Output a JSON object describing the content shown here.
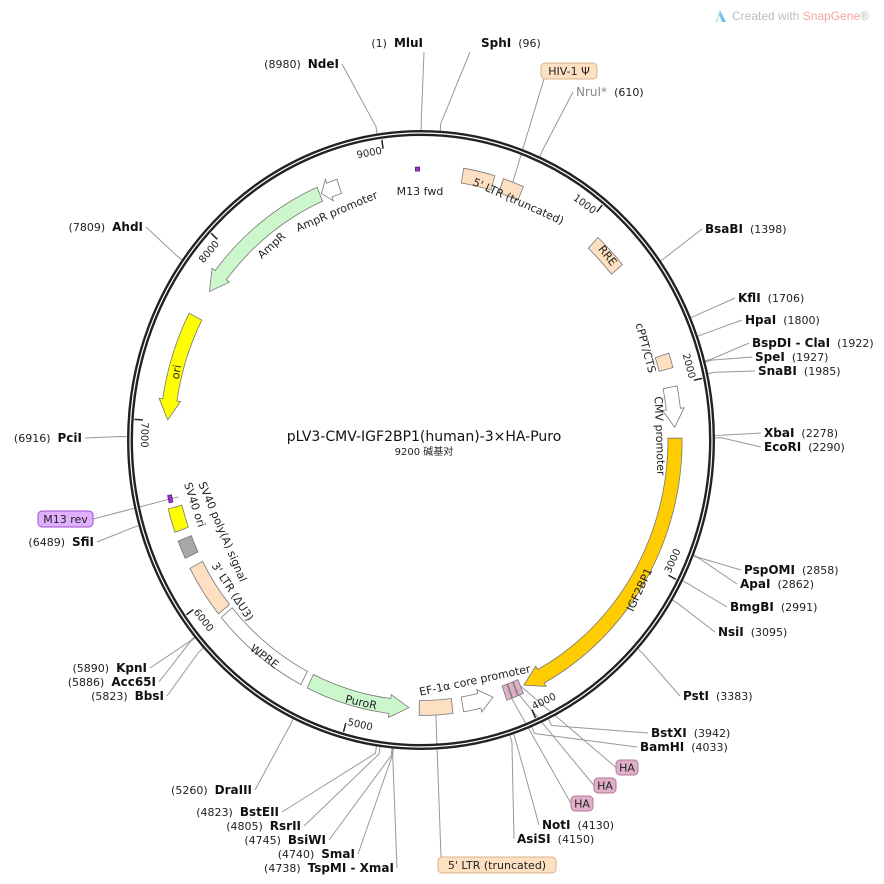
{
  "watermark": {
    "prefix": "Created with ",
    "brand": "SnapGene",
    "suffix": "®"
  },
  "plasmid": {
    "name": "pLV3-CMV-IGF2BP1(human)-3×HA-Puro",
    "length_label": "9200 碱基对",
    "length_bp": 9200
  },
  "ticks": [
    "1000",
    "2000",
    "3000",
    "4000",
    "5000",
    "6000",
    "7000",
    "8000",
    "9000"
  ],
  "colors": {
    "ring": "#222222",
    "peach": "#fde0c2",
    "orange": "#ffcc00",
    "yellow": "#ffff00",
    "green": "#ccf7cc",
    "gray": "#a8a8a8",
    "purple": "#9933cc",
    "pink": "#dfb0c8",
    "callout_purple": "#e0b0ff"
  },
  "features": [
    {
      "label": "M13 fwd",
      "start": 9168,
      "end": 9192,
      "direction": 1,
      "color": "#9933cc",
      "kind": "primer",
      "label_style": "inline"
    },
    {
      "label": "5' LTR (truncated)",
      "start": 240,
      "end": 420,
      "direction": 0,
      "color": "#fde0c2",
      "label_style": "inline"
    },
    {
      "label": "HIV-1 Ψ",
      "start": 470,
      "end": 590,
      "direction": 0,
      "color": "#fde0c2",
      "label_style": "callout"
    },
    {
      "label": "RRE",
      "start": 1090,
      "end": 1290,
      "direction": 0,
      "color": "#fde0c2",
      "label_style": "inline"
    },
    {
      "label": "cPPT/CTS",
      "start": 1830,
      "end": 1910,
      "direction": 0,
      "color": "#fde0c2",
      "label_style": "inline"
    },
    {
      "label": "CMV promoter",
      "start": 2010,
      "end": 2230,
      "direction": 1,
      "color": "#ffffff",
      "label_style": "inline"
    },
    {
      "label": "IGF2BP1",
      "start": 2290,
      "end": 3990,
      "direction": 1,
      "color": "#ffcc00",
      "label_style": "inline"
    },
    {
      "label": "HA",
      "start": 4010,
      "end": 4040,
      "direction": 0,
      "color": "#dfb0c8",
      "label_style": "callout"
    },
    {
      "label": "HA",
      "start": 4045,
      "end": 4075,
      "direction": 0,
      "color": "#dfb0c8",
      "label_style": "callout"
    },
    {
      "label": "HA",
      "start": 4080,
      "end": 4110,
      "direction": 0,
      "color": "#dfb0c8",
      "label_style": "callout"
    },
    {
      "label": "EF-1α core promoter",
      "start": 4180,
      "end": 4360,
      "direction": -1,
      "color": "#ffffff",
      "label_style": "inline"
    },
    {
      "label": "5' LTR (truncated)",
      "start": 4420,
      "end": 4610,
      "direction": 0,
      "color": "#fde0c2",
      "label_style": "callout"
    },
    {
      "label": "PuroR",
      "start": 4670,
      "end": 5260,
      "direction": -1,
      "color": "#ccf7cc",
      "label_style": "inline"
    },
    {
      "label": "WPRE",
      "start": 5300,
      "end": 5875,
      "direction": 0,
      "color": "#ffffff",
      "label_style": "inline"
    },
    {
      "label": "3' LTR (ΔU3)",
      "start": 5900,
      "end": 6190,
      "direction": 0,
      "color": "#fde0c2",
      "label_style": "inline"
    },
    {
      "label": "SV40 poly(A) signal",
      "start": 6250,
      "end": 6350,
      "direction": 0,
      "color": "#a8a8a8",
      "label_style": "inline"
    },
    {
      "label": "SV40 ori",
      "start": 6400,
      "end": 6530,
      "direction": 0,
      "color": "#ffff00",
      "label_style": "inline"
    },
    {
      "label": "M13 rev",
      "start": 6560,
      "end": 6600,
      "direction": 1,
      "color": "#9933cc",
      "kind": "primer",
      "label_style": "callout"
    },
    {
      "label": "ori",
      "start": 7010,
      "end": 7600,
      "direction": -1,
      "color": "#ffff00",
      "label_style": "inline"
    },
    {
      "label": "AmpR",
      "start": 7760,
      "end": 8600,
      "direction": -1,
      "color": "#ccf7cc",
      "label_style": "inline"
    },
    {
      "label": "AmpR promoter",
      "start": 8610,
      "end": 8720,
      "direction": -1,
      "color": "#ffffff",
      "label_style": "inline"
    }
  ],
  "enzymes": [
    {
      "name": "MluI",
      "pos": 1,
      "pos_label": "(1)"
    },
    {
      "name": "SphI",
      "pos": 96,
      "pos_label": "(96)"
    },
    {
      "name": "NdeI",
      "pos": 8980,
      "pos_label": "(8980)"
    },
    {
      "name": "NruI*",
      "pos": 610,
      "pos_label": "(610)",
      "muted": true
    },
    {
      "name": "BsaBI",
      "pos": 1398,
      "pos_label": "(1398)"
    },
    {
      "name": "KflI",
      "pos": 1706,
      "pos_label": "(1706)"
    },
    {
      "name": "HpaI",
      "pos": 1800,
      "pos_label": "(1800)"
    },
    {
      "name": "BspDI - ClaI",
      "pos": 1922,
      "pos_label": "(1922)"
    },
    {
      "name": "SpeI",
      "pos": 1927,
      "pos_label": "(1927)"
    },
    {
      "name": "SnaBI",
      "pos": 1985,
      "pos_label": "(1985)"
    },
    {
      "name": "XbaI",
      "pos": 2278,
      "pos_label": "(2278)"
    },
    {
      "name": "EcoRI",
      "pos": 2290,
      "pos_label": "(2290)"
    },
    {
      "name": "PspOMI",
      "pos": 2858,
      "pos_label": "(2858)"
    },
    {
      "name": "ApaI",
      "pos": 2862,
      "pos_label": "(2862)"
    },
    {
      "name": "BmgBI",
      "pos": 2991,
      "pos_label": "(2991)"
    },
    {
      "name": "NsiI",
      "pos": 3095,
      "pos_label": "(3095)"
    },
    {
      "name": "PstI",
      "pos": 3383,
      "pos_label": "(3383)"
    },
    {
      "name": "BstXI",
      "pos": 3942,
      "pos_label": "(3942)"
    },
    {
      "name": "BamHI",
      "pos": 4033,
      "pos_label": "(4033)"
    },
    {
      "name": "NotI",
      "pos": 4130,
      "pos_label": "(4130)"
    },
    {
      "name": "AsiSI",
      "pos": 4150,
      "pos_label": "(4150)"
    },
    {
      "name": "AhdI",
      "pos": 7809,
      "pos_label": "(7809)"
    },
    {
      "name": "PciI",
      "pos": 6916,
      "pos_label": "(6916)"
    },
    {
      "name": "SfiI",
      "pos": 6489,
      "pos_label": "(6489)"
    },
    {
      "name": "KpnI",
      "pos": 5890,
      "pos_label": "(5890)"
    },
    {
      "name": "Acc65I",
      "pos": 5886,
      "pos_label": "(5886)"
    },
    {
      "name": "BbsI",
      "pos": 5823,
      "pos_label": "(5823)"
    },
    {
      "name": "DraIII",
      "pos": 5260,
      "pos_label": "(5260)"
    },
    {
      "name": "BstEII",
      "pos": 4823,
      "pos_label": "(4823)"
    },
    {
      "name": "RsrII",
      "pos": 4805,
      "pos_label": "(4805)"
    },
    {
      "name": "BsiWI",
      "pos": 4745,
      "pos_label": "(4745)"
    },
    {
      "name": "SmaI",
      "pos": 4740,
      "pos_label": "(4740)"
    },
    {
      "name": "TspMI - XmaI",
      "pos": 4738,
      "pos_label": "(4738)"
    }
  ]
}
